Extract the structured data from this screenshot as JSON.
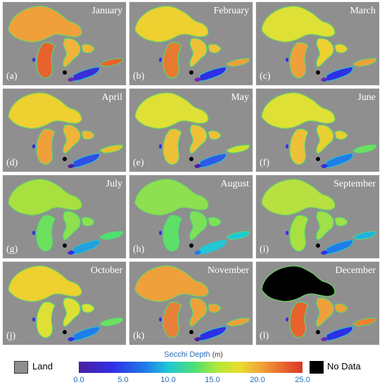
{
  "panels": [
    {
      "month": "January",
      "label": "(a)",
      "sup": "#f0a03a",
      "mich": "#e8622e",
      "huron": "#f0b43a",
      "erie": "#3a2fd8",
      "ontario": "#e8622e",
      "erie_tail": "#6a2bb0"
    },
    {
      "month": "February",
      "label": "(b)",
      "sup": "#eed030",
      "mich": "#e87a30",
      "huron": "#eec03a",
      "erie": "#2f2fe6",
      "ontario": "#f0a03a",
      "erie_tail": "#6a2bb0"
    },
    {
      "month": "March",
      "label": "(c)",
      "sup": "#dfe035",
      "mich": "#f0a03a",
      "huron": "#eed030",
      "erie": "#2f2fe6",
      "ontario": "#f0a03a",
      "erie_tail": "#5a2bc0"
    },
    {
      "month": "April",
      "label": "(d)",
      "sup": "#eed030",
      "mich": "#f0a03a",
      "huron": "#f0b43a",
      "erie": "#2f4fe6",
      "ontario": "#e8c030",
      "erie_tail": "#4b1fa0"
    },
    {
      "month": "May",
      "label": "(e)",
      "sup": "#dfe035",
      "mich": "#eec03a",
      "huron": "#eec03a",
      "erie": "#2f5ae6",
      "ontario": "#cfe030",
      "erie_tail": "#4b1fa0"
    },
    {
      "month": "June",
      "label": "(f)",
      "sup": "#dfe035",
      "mich": "#eec03a",
      "huron": "#e8d030",
      "erie": "#1f7de8",
      "ontario": "#6ee060",
      "erie_tail": "#2f2fe6"
    },
    {
      "month": "July",
      "label": "(g)",
      "sup": "#a8e040",
      "mich": "#6ee060",
      "huron": "#8ee050",
      "erie": "#22a0e0",
      "ontario": "#4ee070",
      "erie_tail": "#2f2fe6"
    },
    {
      "month": "August",
      "label": "(h)",
      "sup": "#8ee050",
      "mich": "#5ee068",
      "huron": "#7ee058",
      "erie": "#22c7d6",
      "ontario": "#22c7d6",
      "erie_tail": "#1f7de8"
    },
    {
      "month": "September",
      "label": "(i)",
      "sup": "#b8e040",
      "mich": "#a8e040",
      "huron": "#a0e048",
      "erie": "#1f7de8",
      "ontario": "#22b0e0",
      "erie_tail": "#2f2fe6"
    },
    {
      "month": "October",
      "label": "(j)",
      "sup": "#eed030",
      "mich": "#dfe035",
      "huron": "#dfe035",
      "erie": "#1f7de8",
      "ontario": "#6ee060",
      "erie_tail": "#2f2fe6"
    },
    {
      "month": "November",
      "label": "(k)",
      "sup": "#f0a03a",
      "mich": "#e8803a",
      "huron": "#f0a03a",
      "erie": "#2f2fe6",
      "ontario": "#f0a03a",
      "erie_tail": "#4b1fa0"
    },
    {
      "month": "December",
      "label": "(l)",
      "sup": "#000000",
      "mich": "#e8622e",
      "huron": "#f0a03a",
      "erie": "#2f2fe6",
      "ontario": "#f08030",
      "erie_tail": "#6a2bb0"
    }
  ],
  "legend": {
    "title": "Secchi Depth",
    "unit": "(m)",
    "ticks": [
      "0.0",
      "5.0",
      "10.0",
      "15.0",
      "20.0",
      "25.0"
    ],
    "land_label": "Land",
    "nodata_label": "No Data",
    "land_color": "#8f8f8f",
    "nodata_color": "#000000"
  }
}
